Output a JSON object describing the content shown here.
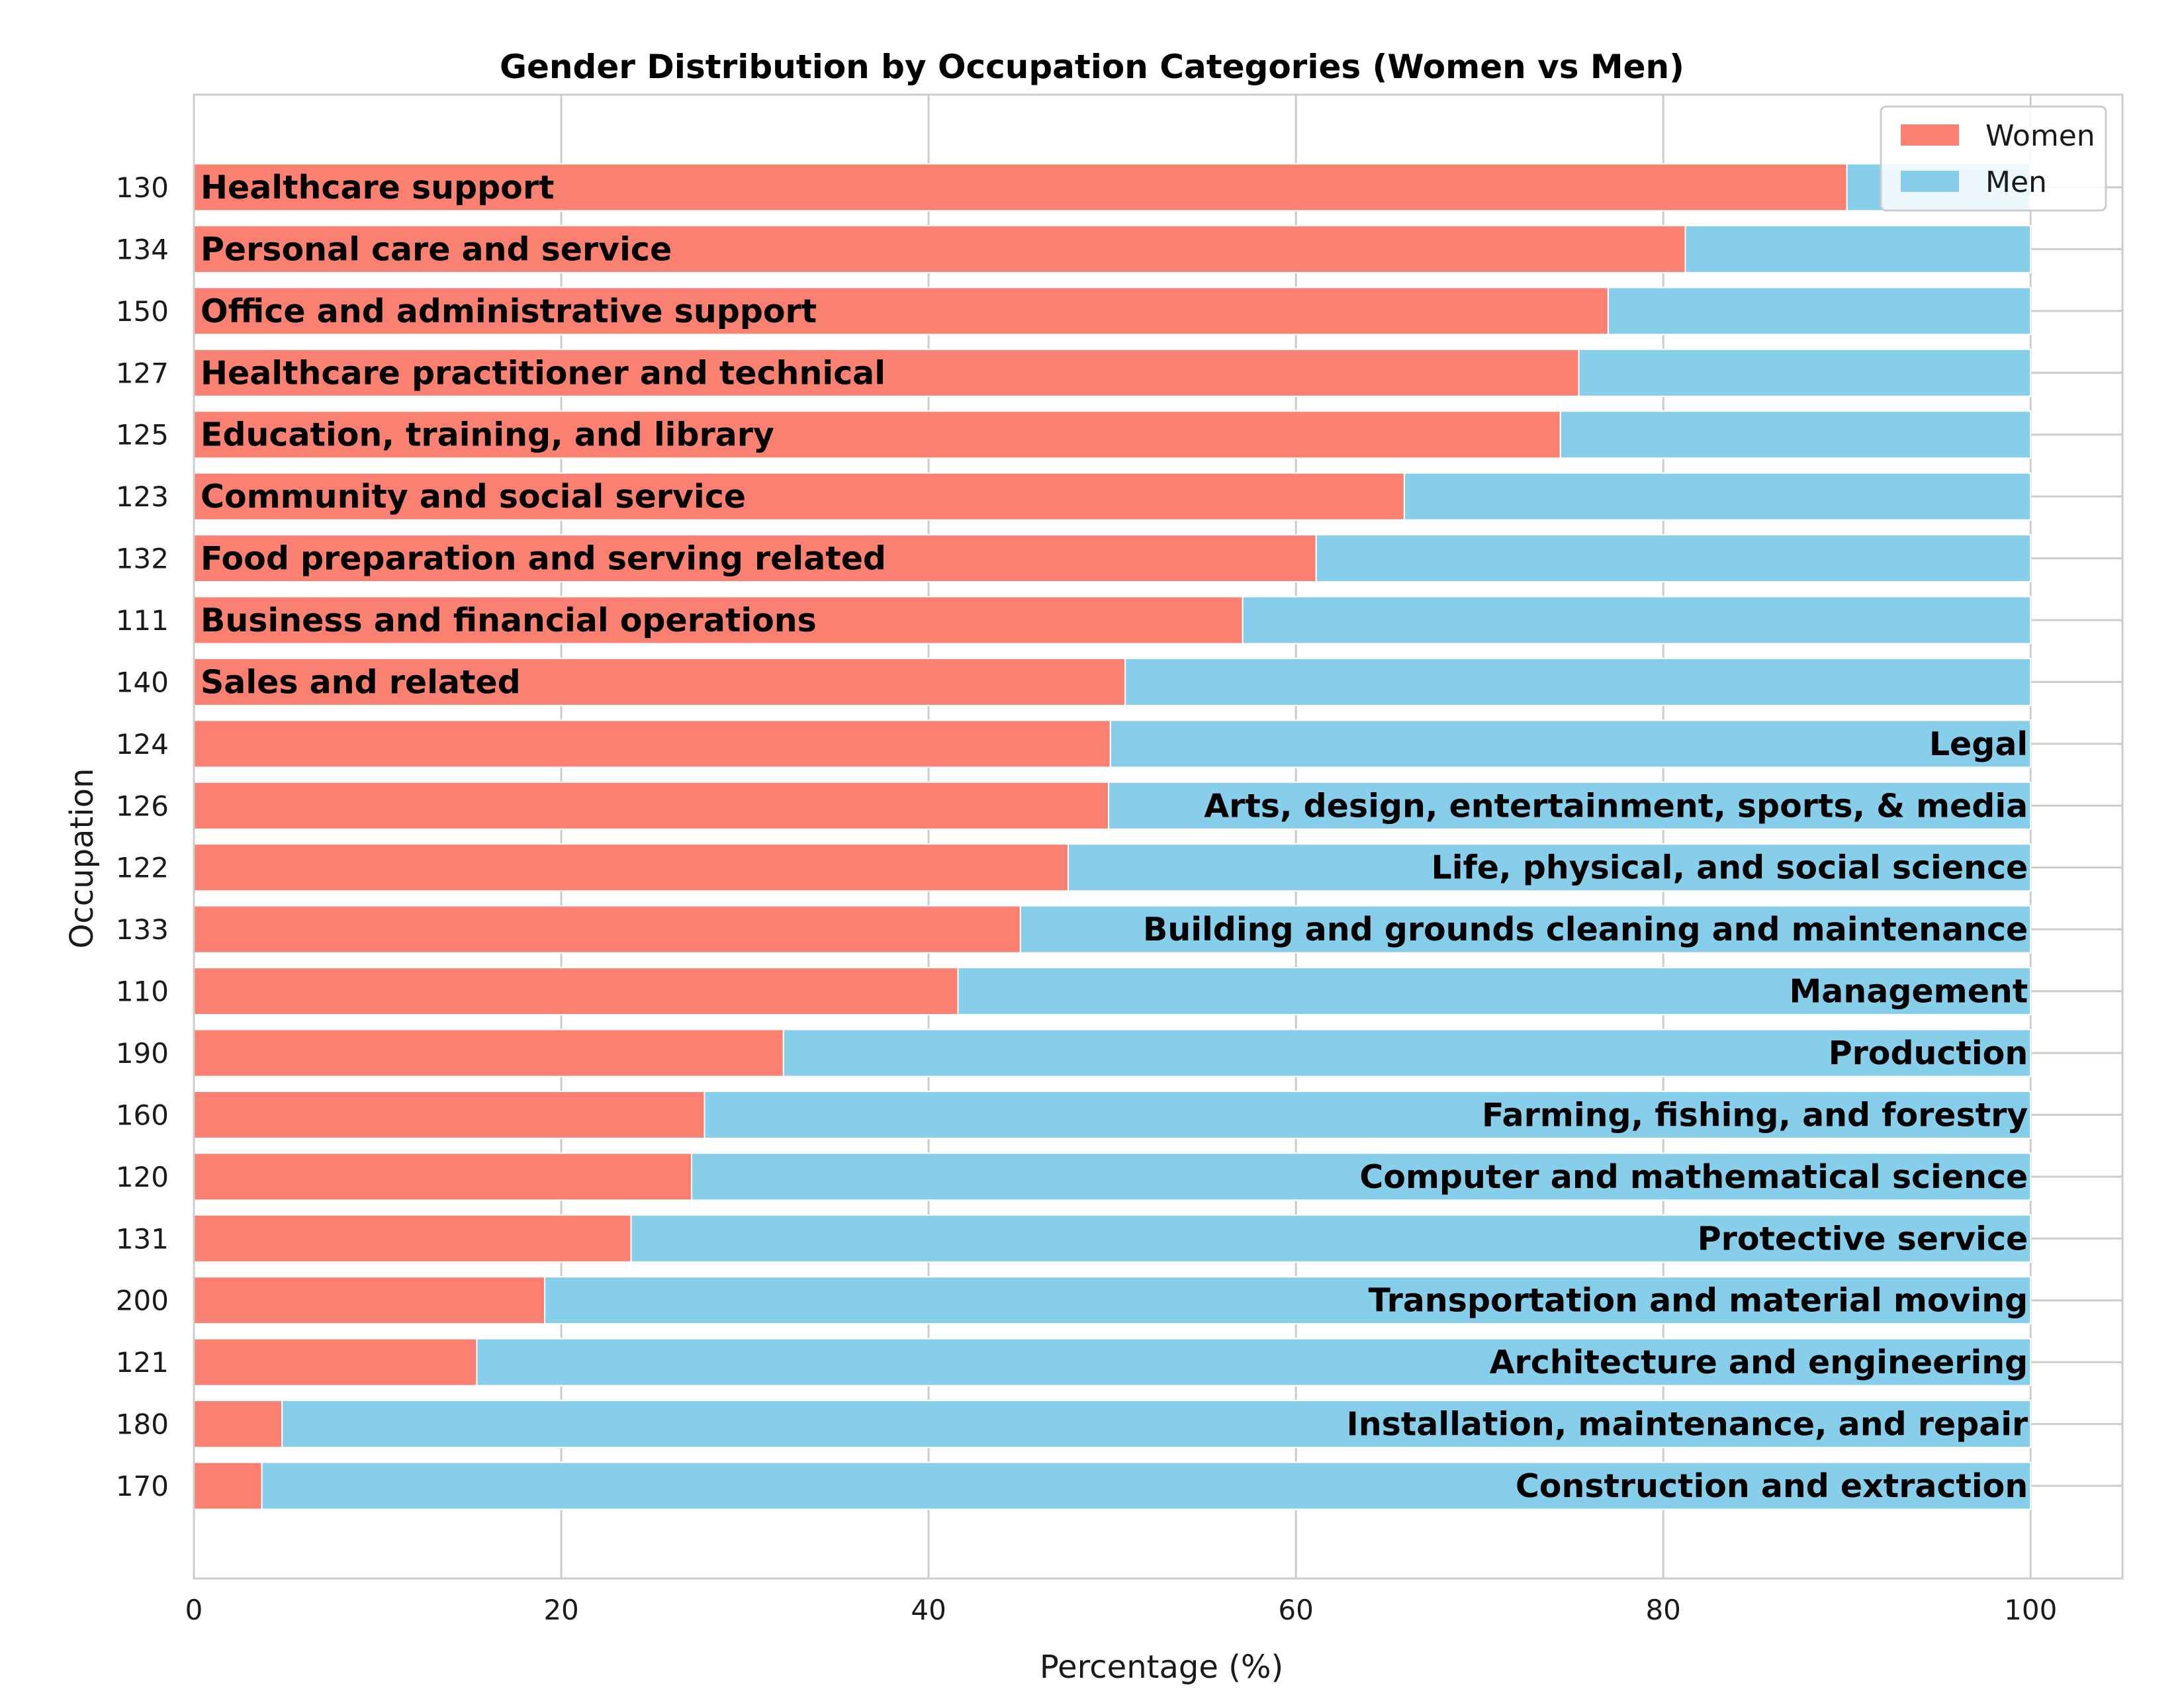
{
  "chart_data": {
    "type": "bar",
    "orientation": "horizontal",
    "stacked": true,
    "title": "Gender Distribution by Occupation Categories (Women vs Men)",
    "xlabel": "Percentage (%)",
    "ylabel": "Occupation",
    "xlim": [
      0,
      105
    ],
    "xticks": [
      "0",
      "20",
      "40",
      "60",
      "80",
      "100"
    ],
    "grid": true,
    "legend_position": "top-right",
    "categories": [
      {
        "code": "130",
        "name": "Healthcare support",
        "label_side": "left"
      },
      {
        "code": "134",
        "name": "Personal care and service",
        "label_side": "left"
      },
      {
        "code": "150",
        "name": "Office and administrative support",
        "label_side": "left"
      },
      {
        "code": "127",
        "name": "Healthcare practitioner and technical",
        "label_side": "left"
      },
      {
        "code": "125",
        "name": "Education, training, and library",
        "label_side": "left"
      },
      {
        "code": "123",
        "name": "Community and social service",
        "label_side": "left"
      },
      {
        "code": "132",
        "name": "Food preparation and serving related",
        "label_side": "left"
      },
      {
        "code": "111",
        "name": "Business and financial operations",
        "label_side": "left"
      },
      {
        "code": "140",
        "name": "Sales and related",
        "label_side": "left"
      },
      {
        "code": "124",
        "name": "Legal",
        "label_side": "right"
      },
      {
        "code": "126",
        "name": "Arts, design, entertainment, sports, & media",
        "label_side": "right"
      },
      {
        "code": "122",
        "name": "Life, physical, and social science",
        "label_side": "right"
      },
      {
        "code": "133",
        "name": "Building and grounds cleaning and maintenance",
        "label_side": "right"
      },
      {
        "code": "110",
        "name": "Management",
        "label_side": "right"
      },
      {
        "code": "190",
        "name": "Production",
        "label_side": "right"
      },
      {
        "code": "160",
        "name": "Farming, fishing, and forestry",
        "label_side": "right"
      },
      {
        "code": "120",
        "name": "Computer and mathematical science",
        "label_side": "right"
      },
      {
        "code": "131",
        "name": "Protective service",
        "label_side": "right"
      },
      {
        "code": "200",
        "name": "Transportation and material moving",
        "label_side": "right"
      },
      {
        "code": "121",
        "name": "Architecture and engineering",
        "label_side": "right"
      },
      {
        "code": "180",
        "name": "Installation, maintenance, and repair",
        "label_side": "right"
      },
      {
        "code": "170",
        "name": "Construction and extraction",
        "label_side": "right"
      }
    ],
    "series": [
      {
        "name": "Women",
        "color": "#fa8072",
        "values": [
          90.0,
          81.2,
          77.0,
          75.4,
          74.4,
          65.9,
          61.1,
          57.1,
          50.7,
          49.9,
          49.8,
          47.6,
          45.0,
          41.6,
          32.1,
          27.8,
          27.1,
          23.8,
          19.1,
          15.4,
          4.8,
          3.7
        ]
      },
      {
        "name": "Men",
        "color": "#87ceeb",
        "values": [
          10.0,
          18.8,
          23.0,
          24.6,
          25.6,
          34.1,
          38.9,
          42.9,
          49.3,
          50.1,
          50.2,
          52.4,
          55.0,
          58.4,
          67.9,
          72.2,
          72.9,
          76.2,
          80.9,
          84.6,
          95.2,
          96.3
        ]
      }
    ]
  }
}
